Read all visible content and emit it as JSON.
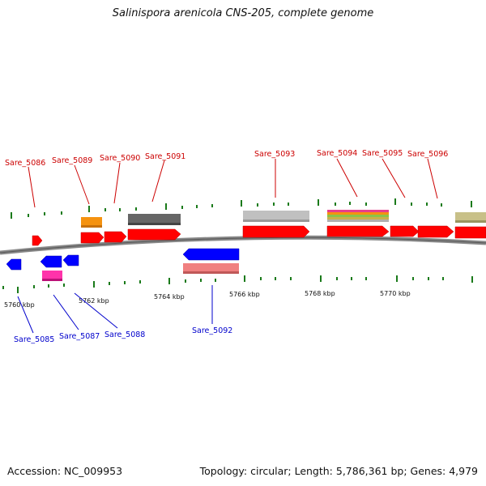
{
  "title": "Salinispora arenicola CNS-205, complete genome",
  "footer": {
    "accession": "Accession: NC_009953",
    "summary": "Topology: circular; Length: 5,786,361 bp; Genes: 4,979"
  },
  "colors": {
    "forward_label": "#cc0000",
    "reverse_label": "#0000cc",
    "tick": "#1a7a1a",
    "backbone": "#888888"
  },
  "ticks": [
    "5760 kbp",
    "5762 kbp",
    "5764 kbp",
    "5766 kbp",
    "5768 kbp",
    "5770 kbp"
  ],
  "gene_labels": [
    "Sare_5085",
    "Sare_5086",
    "Sare_5087",
    "Sare_5088",
    "Sare_5089",
    "Sare_5090",
    "Sare_5091",
    "Sare_5092",
    "Sare_5093",
    "Sare_5094",
    "Sare_5095",
    "Sare_5096"
  ]
}
